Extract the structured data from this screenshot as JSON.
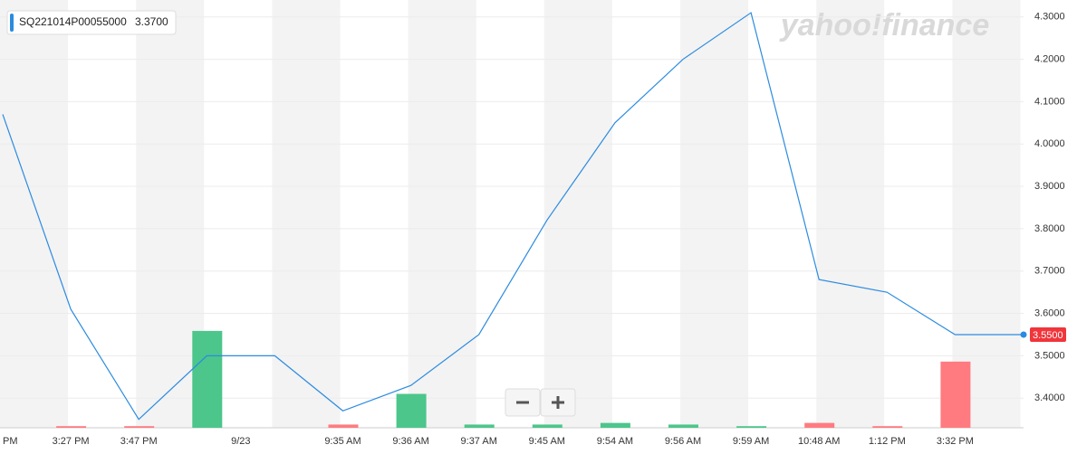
{
  "chart_data": {
    "type": "line",
    "legend": {
      "name": "SQ221014P00055000",
      "value_label": "3.3700"
    },
    "watermark": "yahoo!finance",
    "categories": [
      "PM",
      "3:27 PM",
      "3:47 PM",
      "9/23",
      null,
      "9:35 AM",
      "9:36 AM",
      "9:37 AM",
      "9:45 AM",
      "9:54 AM",
      "9:56 AM",
      "9:59 AM",
      "10:48 AM",
      "1:12 PM",
      "3:32 PM",
      null
    ],
    "series": [
      {
        "name": "SQ221014P00055000",
        "color": "#2c8be0",
        "values": [
          4.07,
          3.61,
          3.35,
          3.5,
          3.5,
          3.37,
          3.43,
          3.55,
          3.82,
          4.05,
          4.2,
          4.31,
          3.68,
          3.65,
          3.55,
          3.55
        ]
      }
    ],
    "volume": {
      "values": [
        null,
        1,
        1,
        60,
        null,
        2,
        21,
        2,
        2,
        3,
        2,
        1,
        3,
        1,
        41,
        null
      ],
      "colors": [
        null,
        "#ff7b80",
        "#ff7b80",
        "#4cc68b",
        null,
        "#ff7b80",
        "#4cc68b",
        "#4cc68b",
        "#4cc68b",
        "#4cc68b",
        "#4cc68b",
        "#4cc68b",
        "#ff7b80",
        "#ff7b80",
        "#ff7b80",
        null
      ],
      "ylim": [
        0,
        265
      ]
    },
    "last_price": {
      "value": 3.55,
      "label": "3.5500",
      "color": "#f0353b"
    },
    "ylim": [
      3.33,
      4.34
    ],
    "yticks": [
      {
        "value": 3.4,
        "label": "3.4000"
      },
      {
        "value": 3.5,
        "label": "3.5000"
      },
      {
        "value": 3.6,
        "label": "3.6000"
      },
      {
        "value": 3.7,
        "label": "3.7000"
      },
      {
        "value": 3.8,
        "label": "3.8000"
      },
      {
        "value": 3.9,
        "label": "3.9000"
      },
      {
        "value": 4.0,
        "label": "4.0000"
      },
      {
        "value": 4.1,
        "label": "4.1000"
      },
      {
        "value": 4.2,
        "label": "4.2000"
      },
      {
        "value": 4.3,
        "label": "4.3000"
      }
    ],
    "grid": true
  }
}
